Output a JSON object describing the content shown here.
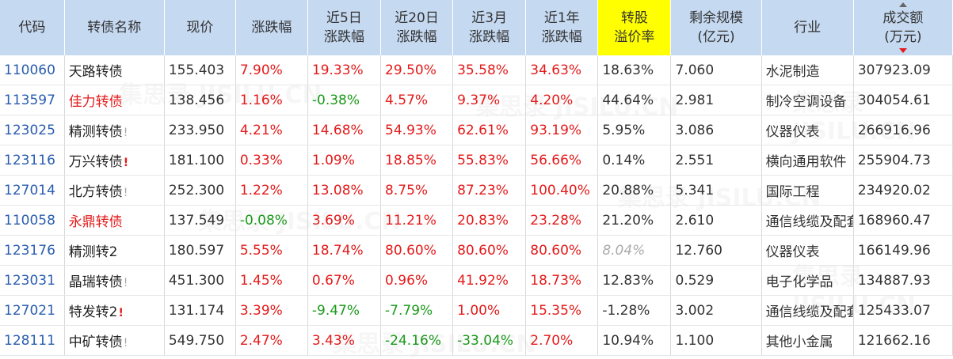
{
  "header": {
    "code": "代码",
    "name": "转债名称",
    "price": "现价",
    "change": "涨跌幅",
    "chg5_l1": "近5日",
    "chg5_l2": "涨跌幅",
    "chg20_l1": "近20日",
    "chg20_l2": "涨跌幅",
    "chg3m_l1": "近3月",
    "chg3m_l2": "涨跌幅",
    "chg1y_l1": "近1年",
    "chg1y_l2": "涨跌幅",
    "premium_l1": "转股",
    "premium_l2": "溢价率",
    "scale_l1": "剩余规模",
    "scale_l2": "(亿元)",
    "industry": "行业",
    "volume_l1": "成交额",
    "volume_l2": "(万元)"
  },
  "watermark": "集思录 JISILU.CN",
  "colors": {
    "header_bg": "#c5d9f1",
    "highlight": "#ffff00",
    "up": "#e41a1a",
    "down": "#1a9a1a",
    "code": "#2a5db0"
  },
  "rows": [
    {
      "code": "110060",
      "name": "天路转债",
      "flag": "",
      "price": "155.403",
      "change": "7.90%",
      "chg5": "19.33%",
      "chg20": "29.50%",
      "chg3m": "35.58%",
      "chg1y": "34.63%",
      "premium": "18.63%",
      "scale": "7.060",
      "industry": "水泥制造",
      "volume": "307923.09"
    },
    {
      "code": "113597",
      "name": "佳力转债",
      "flag": "",
      "price": "138.456",
      "change": "1.16%",
      "chg5": "-0.38%",
      "chg20": "4.57%",
      "chg3m": "9.37%",
      "chg1y": "4.20%",
      "premium": "44.64%",
      "scale": "2.981",
      "industry": "制冷空调设备",
      "volume": "304054.61"
    },
    {
      "code": "123025",
      "name": "精测转债",
      "flag": "!",
      "price": "233.950",
      "change": "4.21%",
      "chg5": "14.68%",
      "chg20": "54.93%",
      "chg3m": "62.61%",
      "chg1y": "93.19%",
      "premium": "5.95%",
      "scale": "3.086",
      "industry": "仪器仪表",
      "volume": "266916.96"
    },
    {
      "code": "123116",
      "name": "万兴转债",
      "flag": "!",
      "price": "181.100",
      "change": "0.33%",
      "chg5": "1.09%",
      "chg20": "18.85%",
      "chg3m": "55.83%",
      "chg1y": "56.66%",
      "premium": "0.14%",
      "scale": "2.551",
      "industry": "横向通用软件",
      "volume": "255904.73"
    },
    {
      "code": "127014",
      "name": "北方转债",
      "flag": "!",
      "price": "252.300",
      "change": "1.22%",
      "chg5": "13.08%",
      "chg20": "8.75%",
      "chg3m": "87.23%",
      "chg1y": "100.40%",
      "premium": "20.88%",
      "scale": "5.341",
      "industry": "国际工程",
      "volume": "234920.02"
    },
    {
      "code": "110058",
      "name": "永鼎转债",
      "flag": "",
      "price": "137.549",
      "change": "-0.08%",
      "chg5": "3.69%",
      "chg20": "11.21%",
      "chg3m": "20.83%",
      "chg1y": "23.28%",
      "premium": "21.20%",
      "scale": "2.610",
      "industry": "通信线缆及配套",
      "volume": "168960.47"
    },
    {
      "code": "123176",
      "name": "精测转2",
      "flag": "",
      "price": "180.597",
      "change": "5.55%",
      "chg5": "18.74%",
      "chg20": "80.60%",
      "chg3m": "80.60%",
      "chg1y": "80.60%",
      "premium": "8.04%",
      "scale": "12.760",
      "industry": "仪器仪表",
      "volume": "166149.96"
    },
    {
      "code": "123031",
      "name": "晶瑞转债",
      "flag": "!",
      "price": "451.300",
      "change": "1.45%",
      "chg5": "0.67%",
      "chg20": "0.96%",
      "chg3m": "41.92%",
      "chg1y": "18.73%",
      "premium": "12.83%",
      "scale": "0.529",
      "industry": "电子化学品",
      "volume": "134887.93"
    },
    {
      "code": "127021",
      "name": "特发转2",
      "flag": "!",
      "price": "131.174",
      "change": "3.39%",
      "chg5": "-9.47%",
      "chg20": "-7.79%",
      "chg3m": "1.00%",
      "chg1y": "15.35%",
      "premium": "-1.28%",
      "scale": "3.002",
      "industry": "通信线缆及配套",
      "volume": "125433.07"
    },
    {
      "code": "128111",
      "name": "中矿转债",
      "flag": "!",
      "price": "549.750",
      "change": "2.47%",
      "chg5": "3.43%",
      "chg20": "-24.16%",
      "chg3m": "-33.04%",
      "chg1y": "2.70%",
      "premium": "10.94%",
      "scale": "1.100",
      "industry": "其他小金属",
      "volume": "121662.16"
    }
  ]
}
